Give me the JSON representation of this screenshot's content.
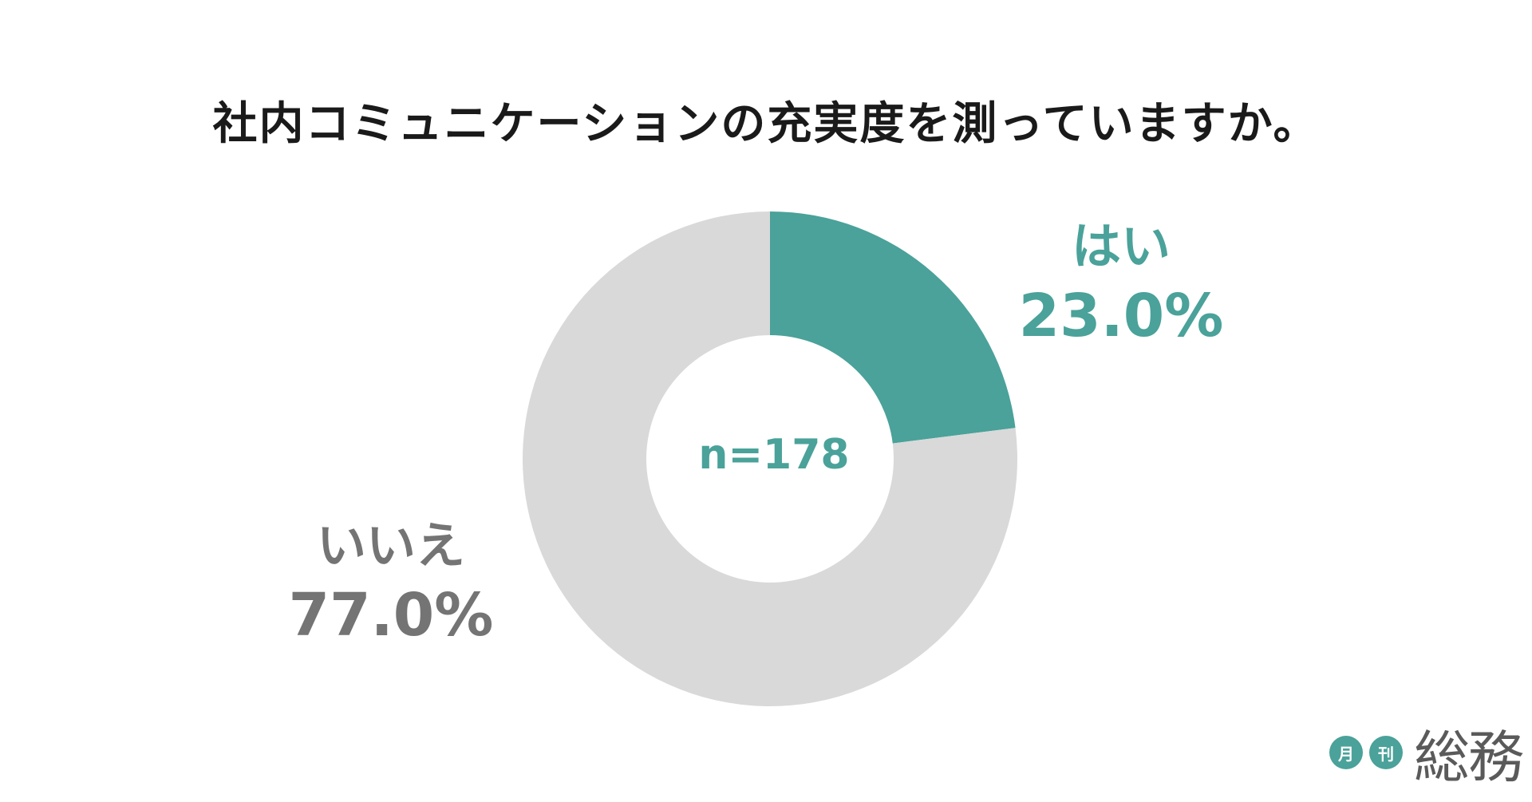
{
  "chart_data": {
    "type": "pie",
    "title": "社内コミュニケーションの充実度を測っていますか。",
    "categories": [
      "はい",
      "いいえ"
    ],
    "values": [
      23.0,
      77.0
    ],
    "value_labels": [
      "23.0%",
      "77.0%"
    ],
    "colors": [
      "#4aa29a",
      "#d9d9d9"
    ],
    "label_colors": [
      "#4aa29a",
      "#747474"
    ],
    "center_text": "n=178",
    "legend": "none",
    "donut": true
  },
  "logo": {
    "badge_1": "月",
    "badge_2": "刊",
    "name": "総務"
  }
}
